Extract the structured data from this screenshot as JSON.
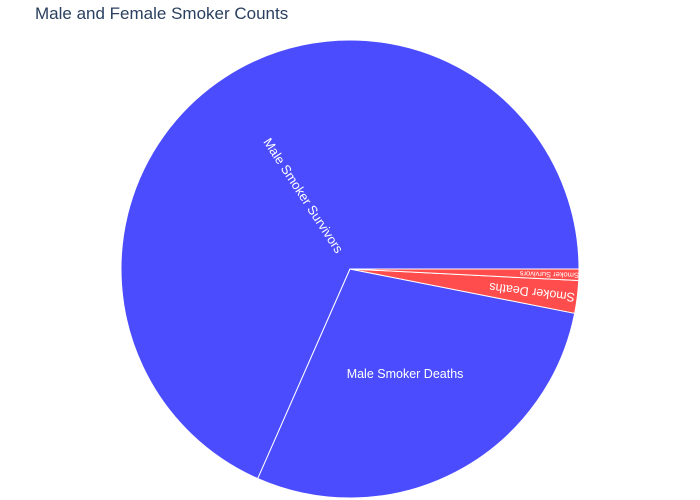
{
  "chart_data": {
    "type": "pie",
    "title": "Male and Female Smoker Counts",
    "slices": [
      {
        "label": "Male Smoker Survivors",
        "value": 68.4,
        "color": "#4c4cff"
      },
      {
        "label": "Male Smoker Deaths",
        "value": 28.5,
        "color": "#4c4cff"
      },
      {
        "label": "Female Smoker Deaths",
        "value": 2.3,
        "color": "#ff4c4c"
      },
      {
        "label": "Female Smoker Survivors",
        "value": 0.8,
        "color": "#ff4c4c"
      }
    ]
  }
}
